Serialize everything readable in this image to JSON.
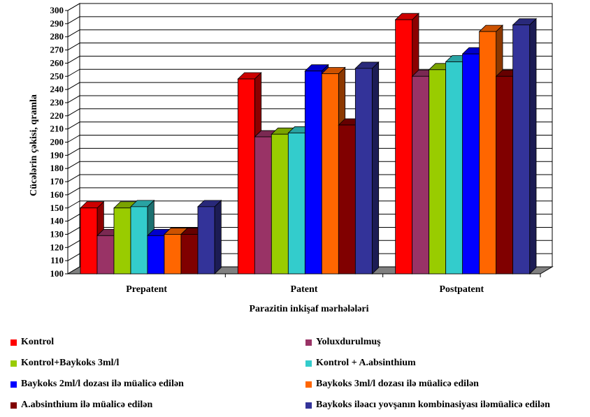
{
  "chart_data": {
    "type": "bar",
    "title": "",
    "xlabel": "Parazitin inkişaf mərhələləri",
    "ylabel": "Cücələrin çəkisi, qramla",
    "ylim": [
      100,
      300
    ],
    "yticks": [
      100,
      110,
      120,
      130,
      140,
      150,
      160,
      170,
      180,
      190,
      200,
      210,
      220,
      230,
      240,
      250,
      260,
      270,
      280,
      290,
      300
    ],
    "grid": true,
    "legend_placement": "bottom",
    "categories": [
      "Prepatent",
      "Patent",
      "Postpatent"
    ],
    "series": [
      {
        "name": "Kontrol",
        "color": "#ff0000",
        "values": [
          150,
          248,
          293
        ]
      },
      {
        "name": "Yoluxdurulmuş",
        "color": "#993366",
        "values": [
          129,
          204,
          250
        ]
      },
      {
        "name": "Kontrol+Baykoks 3ml/l",
        "color": "#99cc00",
        "values": [
          150,
          206,
          255
        ]
      },
      {
        "name": "Kontrol + A.absinthium",
        "color": "#33cccc",
        "values": [
          151,
          207,
          261
        ]
      },
      {
        "name": "Baykoks 2ml/l dozası ilə müalicə edilən",
        "color": "#0000ff",
        "values": [
          129,
          254,
          267
        ]
      },
      {
        "name": "Baykoks 3ml/l dozası ilə müalicə edilən",
        "color": "#ff6600",
        "values": [
          130,
          252,
          284
        ]
      },
      {
        "name": "A.absinthium ilə müalicə edilən",
        "color": "#800000",
        "values": [
          130,
          213,
          250
        ]
      },
      {
        "name": "Baykoks iləacı yovşanın kombinasiyası iləmüalicə edilən",
        "color": "#333399",
        "values": [
          151,
          256,
          289
        ]
      }
    ]
  }
}
